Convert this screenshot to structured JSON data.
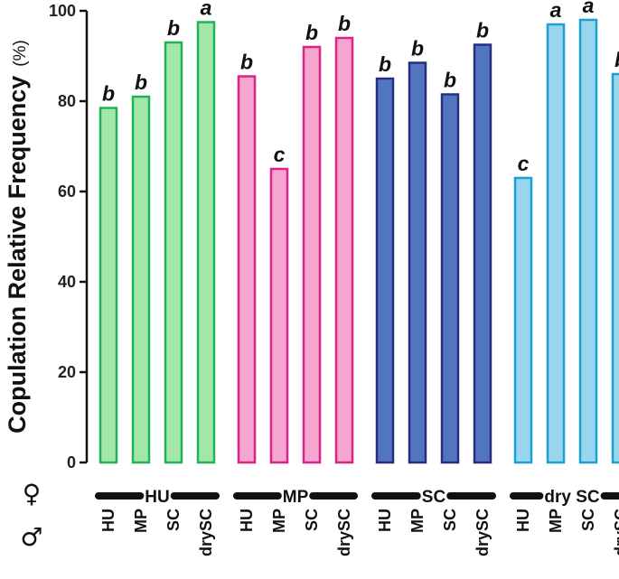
{
  "chart_data": {
    "type": "bar",
    "title": "",
    "ylabel": "Copulation Relative Frequency",
    "ylabel_unit": "(%)",
    "ylim": [
      0,
      100
    ],
    "yticks": [
      0,
      20,
      40,
      60,
      80,
      100
    ],
    "grid": false,
    "female_symbol": "♀",
    "male_symbol": "♂",
    "groups": [
      {
        "female": "HU",
        "fill": "#a2e6a8",
        "stroke": "#22b35a",
        "bars": [
          {
            "male": "HU",
            "value": 78.5,
            "letter": "b"
          },
          {
            "male": "MP",
            "value": 81,
            "letter": "b"
          },
          {
            "male": "SC",
            "value": 93,
            "letter": "b"
          },
          {
            "male": "drySC",
            "value": 97.5,
            "letter": "a"
          }
        ]
      },
      {
        "female": "MP",
        "fill": "#f5a6cf",
        "stroke": "#e0218a",
        "bars": [
          {
            "male": "HU",
            "value": 85.5,
            "letter": "b"
          },
          {
            "male": "MP",
            "value": 65,
            "letter": "c"
          },
          {
            "male": "SC",
            "value": 92,
            "letter": "b"
          },
          {
            "male": "drySC",
            "value": 94,
            "letter": "b"
          }
        ]
      },
      {
        "female": "SC",
        "fill": "#5176bd",
        "stroke": "#2b2d82",
        "bars": [
          {
            "male": "HU",
            "value": 85,
            "letter": "b"
          },
          {
            "male": "MP",
            "value": 88.5,
            "letter": "b"
          },
          {
            "male": "SC",
            "value": 81.5,
            "letter": "b"
          },
          {
            "male": "drySC",
            "value": 92.5,
            "letter": "b"
          }
        ]
      },
      {
        "female": "dry SC",
        "fill": "#99d6ee",
        "stroke": "#19a2d6",
        "bars": [
          {
            "male": "HU",
            "value": 63,
            "letter": "c"
          },
          {
            "male": "MP",
            "value": 97,
            "letter": "a"
          },
          {
            "male": "SC",
            "value": 98,
            "letter": "a"
          },
          {
            "male": "drySC",
            "value": 86,
            "letter": "b"
          }
        ]
      }
    ]
  }
}
